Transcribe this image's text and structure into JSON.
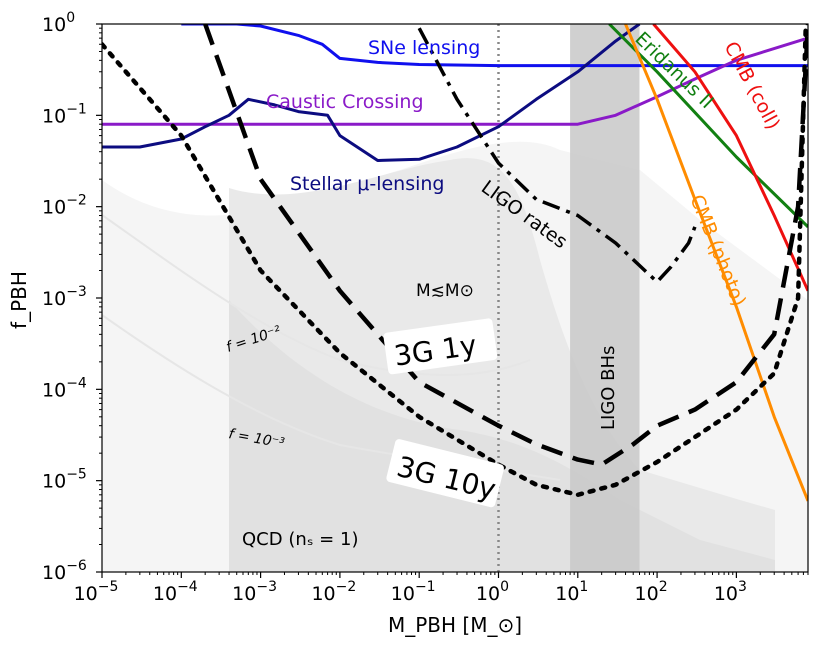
{
  "chart_data": {
    "type": "line",
    "title": "",
    "xlabel": "M_PBH [M_⊙]",
    "ylabel": "f_PBH",
    "xscale": "log",
    "yscale": "log",
    "xlim": [
      1e-05,
      8000
    ],
    "ylim": [
      1e-06,
      1
    ],
    "x_tick_labels": [
      {
        "value": 1e-05,
        "base": "10",
        "exp": "−5"
      },
      {
        "value": 0.0001,
        "base": "10",
        "exp": "−4"
      },
      {
        "value": 0.001,
        "base": "10",
        "exp": "−3"
      },
      {
        "value": 0.01,
        "base": "10",
        "exp": "−2"
      },
      {
        "value": 0.1,
        "base": "10",
        "exp": "−1"
      },
      {
        "value": 1,
        "base": "10",
        "exp": "0"
      },
      {
        "value": 10,
        "base": "10",
        "exp": "1"
      },
      {
        "value": 100,
        "base": "10",
        "exp": "2"
      },
      {
        "value": 1000,
        "base": "10",
        "exp": "3"
      }
    ],
    "y_tick_labels": [
      {
        "value": 1e-06,
        "base": "10",
        "exp": "−6"
      },
      {
        "value": 1e-05,
        "base": "10",
        "exp": "−5"
      },
      {
        "value": 0.0001,
        "base": "10",
        "exp": "−4"
      },
      {
        "value": 0.001,
        "base": "10",
        "exp": "−3"
      },
      {
        "value": 0.01,
        "base": "10",
        "exp": "−2"
      },
      {
        "value": 0.1,
        "base": "10",
        "exp": "−1"
      },
      {
        "value": 1,
        "base": "10",
        "exp": "0"
      }
    ],
    "bands": [
      {
        "name": "LIGO BHs",
        "x_range": [
          8,
          60
        ],
        "color": "#c8c8c8"
      },
      {
        "name": "QCD (n_s = 1)",
        "x_range": [
          0.00033,
          3000
        ],
        "color": "#e9e9e9"
      }
    ],
    "reference_lines": [
      {
        "name": "M = 1 M_sun",
        "x": 1,
        "color": "#888888"
      }
    ],
    "series": [
      {
        "name": "SNe lensing",
        "color": "#1010ee",
        "style": "solid",
        "x": [
          0.0001,
          0.0005,
          0.001,
          0.003,
          0.006,
          0.01,
          0.03,
          0.1,
          1,
          10,
          100,
          1000,
          8000
        ],
        "y": [
          1.0,
          1.0,
          0.95,
          0.75,
          0.6,
          0.42,
          0.38,
          0.36,
          0.35,
          0.35,
          0.35,
          0.35,
          0.35
        ]
      },
      {
        "name": "Caustic Crossing",
        "color": "#8a1ac8",
        "style": "solid",
        "x": [
          1e-05,
          0.01,
          0.1,
          10,
          30,
          100,
          300,
          1000,
          8000
        ],
        "y": [
          0.08,
          0.08,
          0.08,
          0.08,
          0.1,
          0.16,
          0.25,
          0.4,
          0.7
        ]
      },
      {
        "name": "Stellar μ-lensing",
        "color": "#0c0c80",
        "style": "solid",
        "x": [
          1e-05,
          3e-05,
          0.0001,
          0.0002,
          0.0004,
          0.0007,
          0.0015,
          0.003,
          0.007,
          0.01,
          0.03,
          0.1,
          0.3,
          1,
          3,
          10,
          30,
          60
        ],
        "y": [
          0.045,
          0.045,
          0.055,
          0.075,
          0.1,
          0.15,
          0.13,
          0.11,
          0.1,
          0.06,
          0.032,
          0.033,
          0.045,
          0.075,
          0.15,
          0.3,
          0.65,
          1.0
        ]
      },
      {
        "name": "LIGO rates",
        "color": "#000000",
        "style": "dashdot",
        "x": [
          0.1,
          0.3,
          1,
          3,
          10,
          30,
          70,
          100,
          150,
          250,
          300
        ],
        "y": [
          0.9,
          0.15,
          0.03,
          0.012,
          0.008,
          0.004,
          0.002,
          0.0015,
          0.0022,
          0.004,
          0.006
        ]
      },
      {
        "name": "Eridanus II",
        "color": "#128012",
        "style": "solid",
        "x": [
          25,
          100,
          1000,
          8000
        ],
        "y": [
          1.0,
          0.3,
          0.035,
          0.006
        ]
      },
      {
        "name": "CMB (coll)",
        "color": "#ee1010",
        "style": "solid",
        "x": [
          90,
          300,
          1000,
          3000,
          8000
        ],
        "y": [
          1.0,
          0.3,
          0.06,
          0.008,
          0.0012
        ]
      },
      {
        "name": "CMB (photo)",
        "color": "#ff8c00",
        "style": "solid",
        "x": [
          40,
          100,
          300,
          1000,
          3000,
          8000
        ],
        "y": [
          1.0,
          0.15,
          0.012,
          0.0008,
          5e-05,
          6e-06
        ]
      },
      {
        "name": "3G 1y",
        "color": "#000000",
        "style": "dashed",
        "x": [
          0.0002,
          0.001,
          0.01,
          0.1,
          1,
          3,
          10,
          20,
          50,
          100,
          300,
          1000,
          3000,
          6000,
          8000
        ],
        "y": [
          1.0,
          0.02,
          0.0012,
          0.00012,
          4e-05,
          2.5e-05,
          1.7e-05,
          1.5e-05,
          2.5e-05,
          4e-05,
          6e-05,
          0.00012,
          0.0004,
          0.01,
          1.0
        ]
      },
      {
        "name": "3G 10y",
        "color": "#000000",
        "style": "dotted",
        "x": [
          1e-05,
          0.0001,
          0.001,
          0.01,
          0.1,
          1,
          3,
          10,
          30,
          100,
          300,
          1000,
          3000,
          6000,
          7500
        ],
        "y": [
          0.6,
          0.06,
          0.002,
          0.00025,
          5e-05,
          1.5e-05,
          9e-06,
          7e-06,
          9e-06,
          1.6e-05,
          3e-05,
          6e-05,
          0.00015,
          0.001,
          1.0
        ]
      }
    ],
    "annotations": [
      {
        "text": "SNe lensing",
        "color": "#1010ee"
      },
      {
        "text": "Caustic Crossing",
        "color": "#8a1ac8"
      },
      {
        "text": "Stellar μ-lensing",
        "color": "#0c0c80"
      },
      {
        "text": "LIGO rates",
        "color": "#000000"
      },
      {
        "text": "Eridanus II",
        "color": "#128012"
      },
      {
        "text": "CMB (coll)",
        "color": "#ee1010"
      },
      {
        "text": "CMB (photo)",
        "color": "#ff8c00"
      },
      {
        "text": "LIGO BHs",
        "color": "#000000"
      },
      {
        "text": "M≲M⊙",
        "color": "#000000"
      },
      {
        "text": "3G 1y",
        "color": "#000000"
      },
      {
        "text": "3G 10y",
        "color": "#000000"
      },
      {
        "text": "f = 10⁻²",
        "color": "#000000"
      },
      {
        "text": "f = 10⁻³",
        "color": "#000000"
      },
      {
        "text": "QCD (nₛ = 1)",
        "color": "#000000"
      }
    ]
  }
}
